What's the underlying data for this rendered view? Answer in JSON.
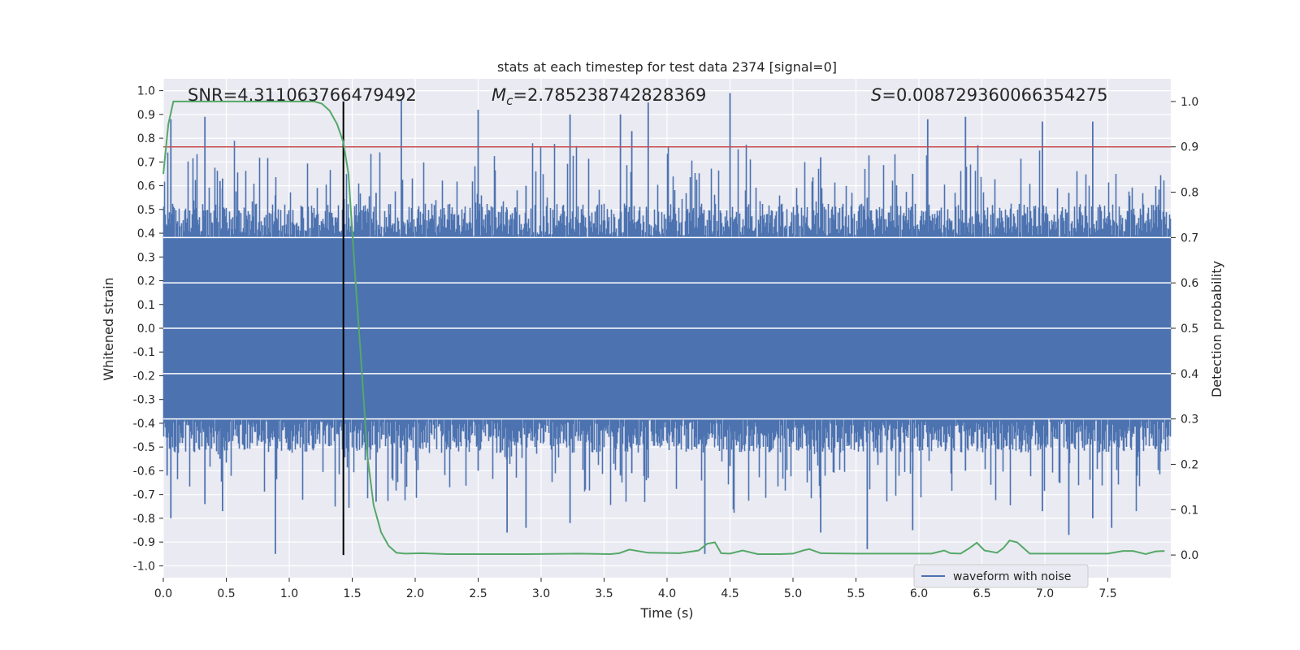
{
  "chart_data": {
    "type": "line",
    "title": "stats at each timestep for test data 2374 [signal=0]",
    "xlabel": "Time (s)",
    "ylabel": "Whitened strain",
    "y2label": "Detection probability",
    "xlim": [
      0,
      8.0
    ],
    "ylim": [
      -1.05,
      1.05
    ],
    "y2lim": [
      -0.05,
      1.05
    ],
    "xticks": [
      "0.0",
      "0.5",
      "1.0",
      "1.5",
      "2.0",
      "2.5",
      "3.0",
      "3.5",
      "4.0",
      "4.5",
      "5.0",
      "5.5",
      "6.0",
      "6.5",
      "7.0",
      "7.5"
    ],
    "yticks": [
      "1.0",
      "0.9",
      "0.8",
      "0.7",
      "0.6",
      "0.5",
      "0.4",
      "0.3",
      "0.2",
      "0.1",
      "0.0",
      "-0.1",
      "-0.2",
      "-0.3",
      "-0.4",
      "-0.5",
      "-0.6",
      "-0.7",
      "-0.8",
      "-0.9",
      "-1.0"
    ],
    "y2ticks": [
      "1.0",
      "0.9",
      "0.8",
      "0.7",
      "0.6",
      "0.5",
      "0.4",
      "0.3",
      "0.2",
      "0.1",
      "0.0"
    ],
    "annotations": {
      "snr": "SNR=4.311063766479492",
      "mc_symbol": "M",
      "mc_sub": "c",
      "mc_value": "=2.785238742828369",
      "s_symbol": "S",
      "s_value": "=0.008729360066354275"
    },
    "threshold": {
      "value": 0.9,
      "axis": "right",
      "color": "#c44e52"
    },
    "vertical_line": {
      "x": 1.43,
      "color": "#000000"
    },
    "waveform": {
      "name": "waveform with noise",
      "color": "#4c72b0",
      "typical_amplitude": 0.42,
      "peak_lows": [
        [
          0.03,
          0.22,
          -0.62
        ],
        [
          0.06,
          0.88,
          -0.8
        ],
        [
          0.33,
          0.89,
          -0.74
        ],
        [
          0.45,
          0.62,
          -0.55
        ],
        [
          0.47,
          0.63,
          -0.77
        ],
        [
          0.89,
          0.56,
          -0.95
        ],
        [
          1.43,
          0.54,
          -0.72
        ],
        [
          1.69,
          0.57,
          -0.73
        ],
        [
          1.89,
          0.96,
          -0.57
        ],
        [
          2.5,
          0.92,
          -0.6
        ],
        [
          2.73,
          0.5,
          -0.86
        ],
        [
          2.88,
          0.6,
          -0.84
        ],
        [
          3.23,
          0.9,
          -0.82
        ],
        [
          3.63,
          0.9,
          -0.62
        ],
        [
          3.72,
          0.83,
          -0.61
        ],
        [
          3.85,
          0.95,
          -0.63
        ],
        [
          4.3,
          0.32,
          -0.95
        ],
        [
          4.5,
          0.99,
          -0.58
        ],
        [
          5.22,
          0.72,
          -0.86
        ],
        [
          5.59,
          0.55,
          -0.93
        ],
        [
          5.95,
          0.65,
          -0.85
        ],
        [
          6.07,
          0.88,
          -0.5
        ],
        [
          6.37,
          0.89,
          -0.6
        ],
        [
          6.98,
          0.87,
          -0.77
        ],
        [
          7.19,
          0.57,
          -0.87
        ],
        [
          7.38,
          0.87,
          -0.8
        ],
        [
          7.53,
          0.39,
          -0.84
        ]
      ]
    },
    "probability": {
      "color": "#55a868",
      "x": [
        0.0,
        0.04,
        0.08,
        0.15,
        0.3,
        0.6,
        1.0,
        1.2,
        1.26,
        1.32,
        1.38,
        1.43,
        1.47,
        1.52,
        1.57,
        1.62,
        1.67,
        1.73,
        1.79,
        1.85,
        1.92,
        2.05,
        2.25,
        2.5,
        2.9,
        3.3,
        3.55,
        3.62,
        3.7,
        3.85,
        4.1,
        4.25,
        4.32,
        4.38,
        4.43,
        4.5,
        4.6,
        4.72,
        4.9,
        5.0,
        5.08,
        5.13,
        5.22,
        5.5,
        5.9,
        6.1,
        6.2,
        6.25,
        6.33,
        6.4,
        6.46,
        6.52,
        6.62,
        6.67,
        6.72,
        6.78,
        6.88,
        7.2,
        7.5,
        7.62,
        7.7,
        7.8,
        7.88,
        7.95
      ],
      "y": [
        0.84,
        0.95,
        1.0,
        1.0,
        1.0,
        1.0,
        1.0,
        1.0,
        0.995,
        0.98,
        0.95,
        0.91,
        0.84,
        0.63,
        0.43,
        0.22,
        0.11,
        0.05,
        0.02,
        0.005,
        0.003,
        0.004,
        0.002,
        0.002,
        0.002,
        0.003,
        0.002,
        0.004,
        0.012,
        0.005,
        0.004,
        0.01,
        0.025,
        0.028,
        0.004,
        0.003,
        0.01,
        0.002,
        0.002,
        0.003,
        0.01,
        0.013,
        0.004,
        0.003,
        0.003,
        0.003,
        0.01,
        0.004,
        0.003,
        0.015,
        0.027,
        0.01,
        0.005,
        0.015,
        0.032,
        0.028,
        0.003,
        0.003,
        0.003,
        0.009,
        0.009,
        0.002,
        0.008,
        0.009
      ]
    },
    "legend": {
      "label": "waveform with noise",
      "position": "lower-right"
    }
  }
}
